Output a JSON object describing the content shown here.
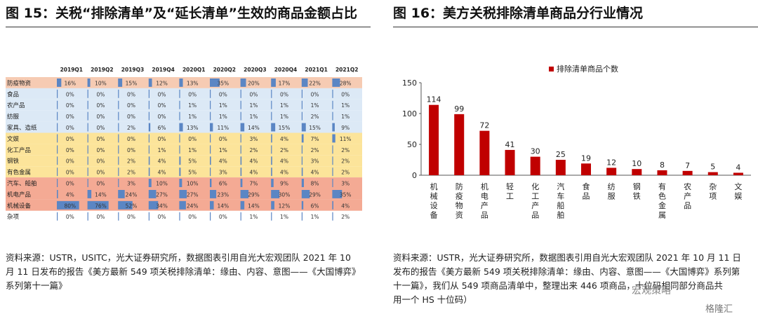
{
  "left": {
    "title": "图 15：关税“排除清单”及“延长清单”生效的商品金额占比",
    "source_lines": [
      "资料来源：USTR，USITC，光大证券研究所，数据图表引用自光大宏观团队 2021 年 10",
      "月 11 日发布的报告《美方最新 549 项关税排除清单：缘由、内容、意图——《大国博弈》",
      "系列第十一篇》"
    ],
    "colors": {
      "pink": "#f6cbb3",
      "blue": "#dce9f6",
      "yellow": "#fce49a",
      "salmon": "#f4aa94",
      "bar": "#5b86c4"
    }
  },
  "right": {
    "title": "图 16：美方关税排除清单商品分行业情况",
    "source_lines": [
      "资料来源：USTR，光大证券研究所，数据图表引用自光大宏观团队 2021 年 10 月 11 日",
      "发布的报告《美方最新 549 项关税排除清单：缘由、内容、意图——《大国博弈》系列第",
      "十一篇》，我们从 549 项商品清单中，整理出来 446 项商品，十位码相同部分商品共",
      "用一个 HS 十位码）"
    ],
    "colors": {
      "bar": "#c00000"
    }
  },
  "watermark": "宏观策略",
  "watermark2": "格隆汇",
  "chart_data": [
    {
      "type": "table",
      "columns": [
        "2019Q1",
        "2019Q2",
        "2019Q3",
        "2019Q4",
        "2020Q1",
        "2020Q2",
        "2020Q3",
        "2020Q4",
        "2021Q1",
        "2021Q2"
      ],
      "rows": [
        {
          "name": "防疫物资",
          "group": "pink",
          "values": [
            16,
            10,
            15,
            12,
            13,
            35,
            20,
            17,
            22,
            28
          ]
        },
        {
          "name": "食品",
          "group": "blue",
          "values": [
            0,
            0,
            0,
            0,
            0,
            0,
            0,
            0,
            0,
            0
          ]
        },
        {
          "name": "农产品",
          "group": "blue",
          "values": [
            0,
            0,
            0,
            0,
            1,
            1,
            1,
            1,
            1,
            1
          ]
        },
        {
          "name": "纺服",
          "group": "blue",
          "values": [
            0,
            0,
            0,
            0,
            1,
            1,
            1,
            1,
            2,
            1
          ]
        },
        {
          "name": "家具、造纸",
          "group": "blue",
          "values": [
            0,
            0,
            2,
            6,
            13,
            11,
            14,
            15,
            15,
            9
          ]
        },
        {
          "name": "文娱",
          "group": "yellow",
          "values": [
            0,
            0,
            0,
            0,
            0,
            0,
            3,
            4,
            7,
            11
          ]
        },
        {
          "name": "化工产品",
          "group": "yellow",
          "values": [
            0,
            0,
            0,
            1,
            1,
            1,
            2,
            2,
            2,
            2
          ]
        },
        {
          "name": "钢铁",
          "group": "yellow",
          "values": [
            0,
            0,
            2,
            4,
            5,
            4,
            4,
            4,
            3,
            2
          ]
        },
        {
          "name": "有色金属",
          "group": "yellow",
          "values": [
            0,
            0,
            2,
            4,
            5,
            3,
            4,
            4,
            4,
            2
          ]
        },
        {
          "name": "汽车、船舶",
          "group": "salmon",
          "values": [
            0,
            0,
            3,
            10,
            10,
            6,
            7,
            9,
            8,
            3
          ]
        },
        {
          "name": "机电产品",
          "group": "salmon",
          "values": [
            4,
            14,
            24,
            27,
            27,
            23,
            29,
            30,
            29,
            35
          ]
        },
        {
          "name": "机械设备",
          "group": "salmon",
          "values": [
            80,
            76,
            52,
            34,
            24,
            14,
            14,
            12,
            6,
            4
          ]
        },
        {
          "name": "杂项",
          "group": "white",
          "values": [
            0,
            0,
            0,
            0,
            0,
            0,
            1,
            1,
            1,
            2
          ]
        }
      ],
      "unit": "%"
    },
    {
      "type": "bar",
      "legend": "排除清单商品个数",
      "categories": [
        "机械设备",
        "防疫物资",
        "机电产品",
        "轻工",
        "化工产品",
        "汽车、船舶",
        "食品",
        "纺服",
        "钢铁",
        "有色金属",
        "农产品",
        "杂项",
        "文娱"
      ],
      "values": [
        114,
        99,
        72,
        41,
        30,
        25,
        19,
        12,
        10,
        8,
        7,
        5,
        4
      ],
      "ylim": [
        0,
        150
      ],
      "yticks": [
        "0",
        "50",
        "100",
        "150"
      ]
    }
  ]
}
